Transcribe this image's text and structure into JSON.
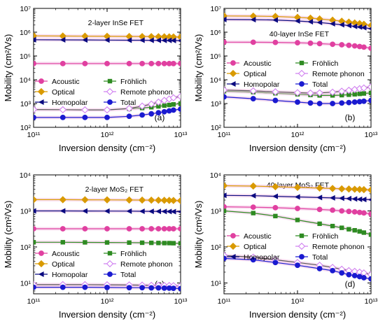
{
  "chart_data": [
    {
      "type": "line",
      "panel_label": "(a)",
      "annotation": "2-layer InSe FET",
      "xlabel": "Inversion density (cm⁻²)",
      "ylabel": "Mobility (cm²/Vs)",
      "x_scale": "log",
      "y_scale": "log",
      "xlim": [
        100000000000.0,
        10000000000000.0
      ],
      "ylim": [
        100,
        10000000.0
      ],
      "x_ticks": [
        100000000000.0,
        1000000000000.0,
        10000000000000.0
      ],
      "x_tick_labels": [
        "10¹¹",
        "10¹²",
        "10¹³"
      ],
      "y_ticks": [
        100,
        1000,
        10000,
        100000,
        1000000,
        10000000
      ],
      "y_tick_labels": [
        "10²",
        "10³",
        "10⁴",
        "10⁵",
        "10⁶",
        "10⁷"
      ],
      "legend": "lower-center",
      "x": [
        100000000000.0,
        250000000000.0,
        500000000000.0,
        1000000000000.0,
        2000000000000.0,
        3000000000000.0,
        4000000000000.0,
        5000000000000.0,
        6000000000000.0,
        7000000000000.0,
        8000000000000.0,
        10000000000000.0
      ],
      "series": [
        {
          "name": "Acoustic",
          "values": [
            48000,
            48000,
            48000,
            48000,
            48000,
            48000,
            48000,
            48000,
            48000,
            48000,
            48000,
            48000
          ]
        },
        {
          "name": "Fröhlich",
          "values": [
            null,
            null,
            null,
            null,
            600,
            650,
            700,
            760,
            820,
            870,
            920,
            1000
          ]
        },
        {
          "name": "Optical",
          "values": [
            700000,
            690000,
            680000,
            670000,
            660000,
            655000,
            650000,
            645000,
            640000,
            635000,
            630000,
            620000
          ]
        },
        {
          "name": "Remote phonon",
          "values": [
            560,
            550,
            540,
            540,
            620,
            780,
            950,
            1150,
            1350,
            1550,
            1750,
            2000
          ]
        },
        {
          "name": "Homopolar",
          "values": [
            480000,
            475000,
            470000,
            465000,
            460000,
            458000,
            456000,
            454000,
            452000,
            450000,
            448000,
            445000
          ]
        },
        {
          "name": "Total",
          "values": [
            260,
            260,
            260,
            260,
            290,
            330,
            370,
            410,
            450,
            490,
            530,
            580
          ]
        }
      ]
    },
    {
      "type": "line",
      "panel_label": "(b)",
      "annotation": "40-layer InSe FET",
      "xlabel": "Inversion density (cm⁻²)",
      "ylabel": "Mobility (cm²/Vs)",
      "x_scale": "log",
      "y_scale": "log",
      "xlim": [
        100000000000.0,
        10000000000000.0
      ],
      "ylim": [
        100,
        10000000.0
      ],
      "x_ticks": [
        100000000000.0,
        1000000000000.0,
        10000000000000.0
      ],
      "x_tick_labels": [
        "10¹¹",
        "10¹²",
        "10¹³"
      ],
      "y_ticks": [
        100,
        1000,
        10000,
        100000,
        1000000,
        10000000
      ],
      "y_tick_labels": [
        "10²",
        "10³",
        "10⁴",
        "10⁵",
        "10⁶",
        "10⁷"
      ],
      "legend": "center",
      "x": [
        100000000000.0,
        250000000000.0,
        500000000000.0,
        1000000000000.0,
        1500000000000.0,
        2000000000000.0,
        3000000000000.0,
        4000000000000.0,
        5000000000000.0,
        6000000000000.0,
        7000000000000.0,
        8000000000000.0,
        10000000000000.0
      ],
      "series": [
        {
          "name": "Acoustic",
          "values": [
            380000,
            378000,
            372000,
            360000,
            345000,
            330000,
            310000,
            295000,
            280000,
            265000,
            250000,
            235000,
            210000
          ]
        },
        {
          "name": "Fröhlich",
          "values": [
            3300,
            3000,
            2700,
            2450,
            2300,
            2200,
            2200,
            2250,
            2350,
            2450,
            2550,
            2650,
            2800
          ]
        },
        {
          "name": "Optical",
          "values": [
            4800000,
            4750000,
            4600000,
            4200000,
            3900000,
            3600000,
            3200000,
            2900000,
            2650000,
            2450000,
            2300000,
            2150000,
            1900000
          ]
        },
        {
          "name": "Remote phonon",
          "values": [
            3700,
            3400,
            3100,
            2850,
            2750,
            2800,
            3000,
            3300,
            3600,
            3900,
            4200,
            4500,
            5000
          ]
        },
        {
          "name": "Homopolar",
          "values": [
            3400000,
            3350000,
            3250000,
            2950000,
            2750000,
            2550000,
            2250000,
            2050000,
            1900000,
            1750000,
            1650000,
            1550000,
            1400000
          ]
        },
        {
          "name": "Total",
          "values": [
            1900,
            1600,
            1350,
            1150,
            1050,
            1000,
            1000,
            1050,
            1100,
            1150,
            1200,
            1250,
            1350
          ]
        }
      ]
    },
    {
      "type": "line",
      "panel_label": "(c)",
      "annotation": "2-layer MoS₂ FET",
      "xlabel": "Inversion density (cm⁻²)",
      "ylabel": "Mobility (cm²/Vs)",
      "x_scale": "log",
      "y_scale": "log",
      "xlim": [
        100000000000.0,
        10000000000000.0
      ],
      "ylim": [
        5,
        10000
      ],
      "x_ticks": [
        100000000000.0,
        1000000000000.0,
        10000000000000.0
      ],
      "x_tick_labels": [
        "10¹¹",
        "10¹²",
        "10¹³"
      ],
      "y_ticks": [
        10,
        100,
        1000,
        10000
      ],
      "y_tick_labels": [
        "10¹",
        "10²",
        "10³",
        "10⁴"
      ],
      "legend": "lower-center",
      "x": [
        100000000000.0,
        250000000000.0,
        500000000000.0,
        1000000000000.0,
        2000000000000.0,
        3000000000000.0,
        4000000000000.0,
        5000000000000.0,
        6000000000000.0,
        7000000000000.0,
        8000000000000.0,
        10000000000000.0
      ],
      "series": [
        {
          "name": "Acoustic",
          "values": [
            320,
            320,
            320,
            320,
            320,
            320,
            320,
            320,
            320,
            320,
            320,
            320
          ]
        },
        {
          "name": "Fröhlich",
          "values": [
            135,
            135,
            134,
            133,
            132,
            131,
            130,
            129,
            128,
            128,
            127,
            126
          ]
        },
        {
          "name": "Optical",
          "values": [
            2050,
            2050,
            2040,
            2030,
            2010,
            2000,
            1990,
            1980,
            1970,
            1960,
            1950,
            1930
          ]
        },
        {
          "name": "Remote phonon",
          "values": [
            9,
            9,
            9,
            8.9,
            8.8,
            8.7,
            8.6,
            8.6,
            8.5,
            8.5,
            8.4,
            8.3
          ]
        },
        {
          "name": "Homopolar",
          "values": [
            1000,
            1000,
            995,
            990,
            985,
            980,
            975,
            970,
            965,
            960,
            955,
            950
          ]
        },
        {
          "name": "Total",
          "values": [
            7.6,
            7.6,
            7.6,
            7.5,
            7.4,
            7.4,
            7.3,
            7.3,
            7.2,
            7.2,
            7.1,
            7.0
          ]
        }
      ]
    },
    {
      "type": "line",
      "panel_label": "(d)",
      "annotation": "40-layer MoS₂ FET",
      "xlabel": "Inversion density (cm⁻²)",
      "ylabel": "Mobility (cm²/Vs)",
      "x_scale": "log",
      "y_scale": "log",
      "xlim": [
        100000000000.0,
        10000000000000.0
      ],
      "ylim": [
        5,
        10000
      ],
      "x_ticks": [
        100000000000.0,
        1000000000000.0,
        10000000000000.0
      ],
      "x_tick_labels": [
        "10¹¹",
        "10¹²",
        "10¹³"
      ],
      "y_ticks": [
        10,
        100,
        1000,
        10000
      ],
      "y_tick_labels": [
        "10¹",
        "10²",
        "10³",
        "10⁴"
      ],
      "legend": "center",
      "x": [
        100000000000.0,
        250000000000.0,
        500000000000.0,
        1000000000000.0,
        2000000000000.0,
        3000000000000.0,
        4000000000000.0,
        5000000000000.0,
        6000000000000.0,
        7000000000000.0,
        8000000000000.0,
        10000000000000.0
      ],
      "series": [
        {
          "name": "Acoustic",
          "values": [
            1300,
            1270,
            1230,
            1170,
            1100,
            1050,
            1000,
            970,
            940,
            910,
            880,
            820
          ]
        },
        {
          "name": "Fröhlich",
          "values": [
            1000,
            870,
            720,
            560,
            440,
            380,
            340,
            310,
            290,
            270,
            250,
            220
          ]
        },
        {
          "name": "Optical",
          "values": [
            5000,
            4900,
            4700,
            4500,
            4300,
            4200,
            4100,
            4050,
            4000,
            3950,
            3900,
            3800
          ]
        },
        {
          "name": "Remote phonon",
          "values": [
            58,
            52,
            44,
            37,
            31,
            27,
            24,
            22,
            21,
            20,
            19,
            17
          ]
        },
        {
          "name": "Homopolar",
          "values": [
            2700,
            2650,
            2550,
            2450,
            2350,
            2300,
            2250,
            2200,
            2150,
            2100,
            2080,
            2050
          ]
        },
        {
          "name": "Total",
          "values": [
            48,
            44,
            37,
            31,
            25,
            22,
            19,
            17,
            16,
            15,
            14,
            13
          ]
        }
      ]
    }
  ],
  "series_styles": [
    {
      "name": "Acoustic",
      "color": "#e040a0",
      "marker": "circle",
      "dash": ""
    },
    {
      "name": "Fröhlich",
      "color": "#2e8b22",
      "marker": "square",
      "dash": ""
    },
    {
      "name": "Optical",
      "color": "#d99a00",
      "marker": "diamond",
      "dash": ""
    },
    {
      "name": "Remote phonon",
      "color": "#d080f0",
      "marker": "diamond-open",
      "dash": ""
    },
    {
      "name": "Homopolar",
      "color": "#0a0a80",
      "marker": "triangle-left",
      "dash": ""
    },
    {
      "name": "Total",
      "color": "#1a1ad0",
      "marker": "circle-half",
      "dash": ""
    }
  ],
  "colors": {
    "band": "#f2b8e0",
    "axis": "#000000"
  }
}
